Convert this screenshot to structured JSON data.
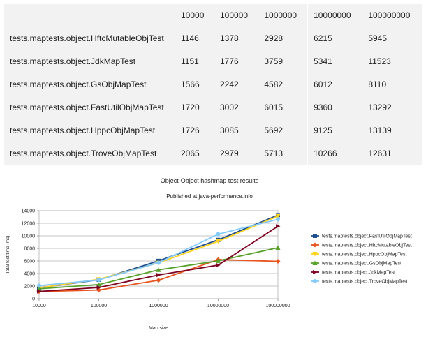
{
  "table": {
    "headers": [
      "",
      "10000",
      "100000",
      "1000000",
      "10000000",
      "100000000"
    ],
    "rows": [
      {
        "name": "tests.maptests.object.HftcMutableObjTest",
        "values": [
          "1146",
          "1378",
          "2928",
          "6215",
          "5945"
        ]
      },
      {
        "name": "tests.maptests.object.JdkMapTest",
        "values": [
          "1151",
          "1776",
          "3759",
          "5341",
          "11523"
        ]
      },
      {
        "name": "tests.maptests.object.GsObjMapTest",
        "values": [
          "1566",
          "2242",
          "4582",
          "6012",
          "8110"
        ]
      },
      {
        "name": "tests.maptests.object.FastUtilObjMapTest",
        "values": [
          "1720",
          "3002",
          "6015",
          "9360",
          "13292"
        ]
      },
      {
        "name": "tests.maptests.object.HppcObjMapTest",
        "values": [
          "1726",
          "3085",
          "5692",
          "9125",
          "13139"
        ]
      },
      {
        "name": "tests.maptests.object.TroveObjMapTest",
        "values": [
          "2065",
          "2979",
          "5713",
          "10266",
          "12631"
        ]
      }
    ]
  },
  "chart_data": {
    "type": "line",
    "title": "Object-Object hashmap test results",
    "subtitle": "Published at java-performance.info",
    "xlabel": "Map size",
    "ylabel": "Total test time (ms)",
    "categories": [
      "10000",
      "100000",
      "1000000",
      "10000000",
      "100000000"
    ],
    "ylim": [
      0,
      14000
    ],
    "yticks": [
      "0",
      "2000",
      "4000",
      "6000",
      "8000",
      "10000",
      "12000",
      "14000"
    ],
    "grid": true,
    "legend_position": "right",
    "series": [
      {
        "name": "tests.maptests.object.FastUtilObjMapTest",
        "color": "#1f4e8c",
        "marker": "square",
        "values": [
          1720,
          3002,
          6015,
          9360,
          13292
        ]
      },
      {
        "name": "tests.maptests.object.HftcMutableObjTest",
        "color": "#e8541e",
        "marker": "diamond",
        "values": [
          1146,
          1378,
          2928,
          6215,
          5945
        ]
      },
      {
        "name": "tests.maptests.object.HppcObjMapTest",
        "color": "#ffd320",
        "marker": "triangle-down",
        "values": [
          1726,
          3085,
          5692,
          9125,
          13139
        ]
      },
      {
        "name": "tests.maptests.object.GsObjMapTest",
        "color": "#57a02a",
        "marker": "triangle",
        "values": [
          1566,
          2242,
          4582,
          6012,
          8110
        ]
      },
      {
        "name": "tests.maptests.object.JdkMapTest",
        "color": "#7e0021",
        "marker": "arrow",
        "values": [
          1151,
          1776,
          3759,
          5341,
          11523
        ]
      },
      {
        "name": "tests.maptests.object.TroveObjMapTest",
        "color": "#83caff",
        "marker": "circle",
        "values": [
          2065,
          2979,
          5713,
          10266,
          12631
        ]
      }
    ]
  }
}
